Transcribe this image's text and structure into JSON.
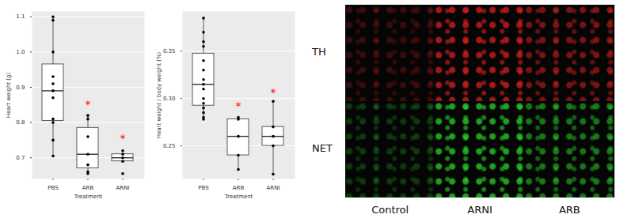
{
  "chart_data": [
    {
      "type": "box",
      "y_label": "Heart weight (g)",
      "x_label": "Treatment",
      "categories": [
        "PBS",
        "ARB",
        "ARNI"
      ],
      "values": [
        [
          1.1,
          1.09,
          1.0,
          0.93,
          0.91,
          0.89,
          0.87,
          0.81,
          0.8,
          0.75,
          0.705
        ],
        [
          0.82,
          0.81,
          0.76,
          0.71,
          0.68,
          0.66,
          0.655
        ],
        [
          0.72,
          0.71,
          0.7,
          0.69,
          0.655
        ]
      ],
      "ylim": [
        0.64,
        1.115
      ],
      "yticks": [
        0.7,
        0.8,
        0.9,
        {
          "value": 1,
          "label": "1.0"
        },
        1.1
      ],
      "grid": true,
      "annotations": [
        {
          "x": "ARB",
          "y": 0.85,
          "text": "*"
        },
        {
          "x": "ARNI",
          "y": 0.755,
          "text": "*"
        }
      ]
    },
    {
      "type": "box",
      "y_label": "Heart weight / body weight (%)",
      "x_label": "Treatment",
      "categories": [
        "PBS",
        "ARB",
        "ARNI"
      ],
      "values": [
        [
          0.385,
          0.37,
          0.36,
          0.355,
          0.34,
          0.33,
          0.32,
          0.315,
          0.31,
          0.3,
          0.295,
          0.29,
          0.285,
          0.28,
          0.278
        ],
        [
          0.28,
          0.278,
          0.26,
          0.24,
          0.225
        ],
        [
          0.297,
          0.27,
          0.26,
          0.25,
          0.22
        ]
      ],
      "ylim": [
        0.215,
        0.392
      ],
      "yticks": [
        0.25,
        {
          "value": 0.3,
          "label": "0.30"
        },
        0.35
      ],
      "grid": true,
      "annotations": [
        {
          "x": "ARB",
          "y": 0.292,
          "text": "*"
        },
        {
          "x": "ARNI",
          "y": 0.306,
          "text": "*"
        }
      ]
    }
  ],
  "image_panel": {
    "row_labels": [
      "TH",
      "NET"
    ],
    "column_labels": [
      "Control",
      "ARNI",
      "ARB"
    ]
  }
}
